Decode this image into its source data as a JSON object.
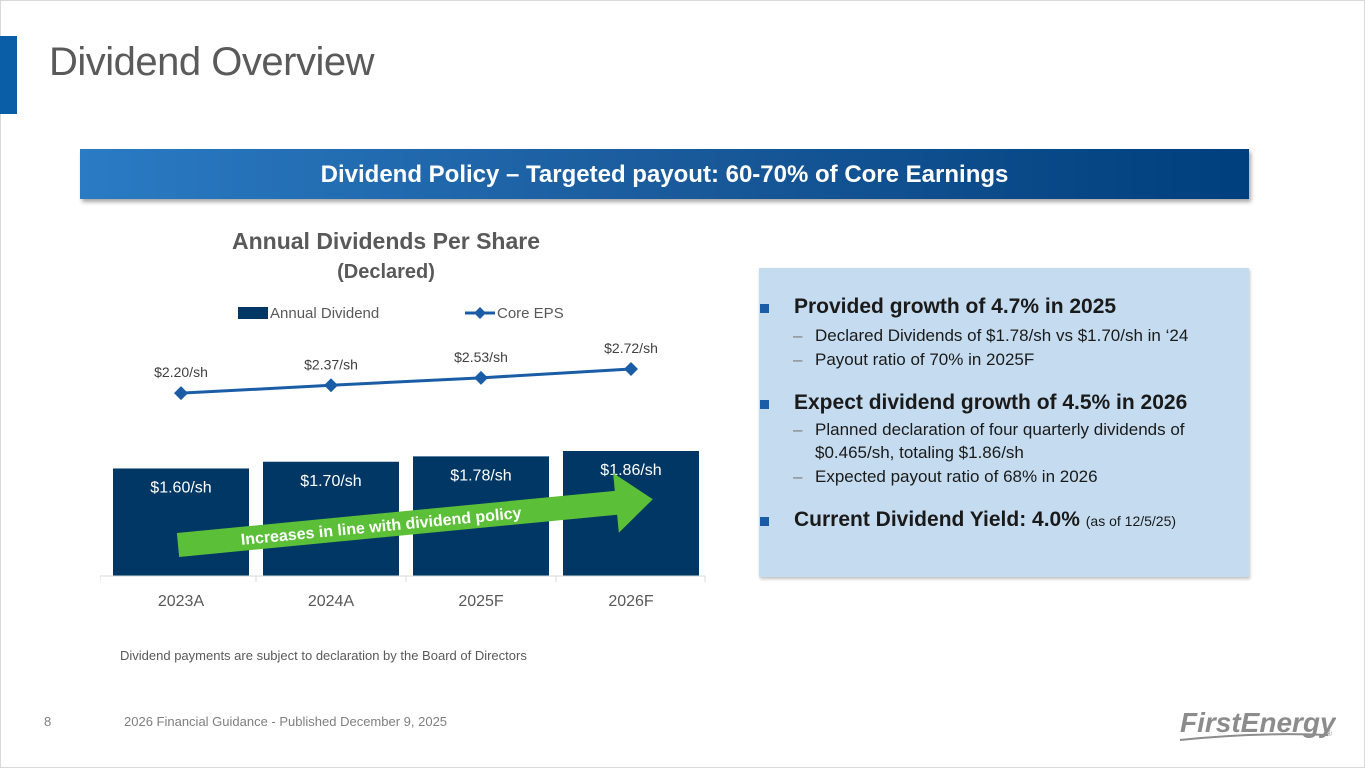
{
  "slide": {
    "title": "Dividend Overview",
    "banner": "Dividend Policy – Targeted payout: 60-70% of Core Earnings",
    "footnote": "Dividend payments are subject to declaration by the Board of Directors",
    "page_number": "8",
    "footer": "2026 Financial Guidance - Published December 9, 2025",
    "logo_text": "FirstEnergy",
    "logo_mark": "®"
  },
  "chart_title": {
    "line1": "Annual Dividends Per Share",
    "line2": "(Declared)"
  },
  "chart_data": {
    "type": "bar",
    "title": "Annual Dividends Per Share (Declared)",
    "categories": [
      "2023A",
      "2024A",
      "2025F",
      "2026F"
    ],
    "series": [
      {
        "name": "Annual Dividend",
        "type": "bar",
        "values": [
          1.6,
          1.7,
          1.78,
          1.86
        ],
        "labels": [
          "$1.60/sh",
          "$1.70/sh",
          "$1.78/sh",
          "$1.86/sh"
        ]
      },
      {
        "name": "Core EPS",
        "type": "line",
        "values": [
          2.2,
          2.37,
          2.53,
          2.72
        ],
        "labels": [
          "$2.20/sh",
          "$2.37/sh",
          "$2.53/sh",
          "$2.72/sh"
        ]
      }
    ],
    "annotation": "Increases in line with dividend policy",
    "legend_position": "top",
    "xlabel": "",
    "ylabel": "",
    "grid": false,
    "colors": {
      "bar": "#003764",
      "line": "#1a5da6",
      "arrow": "#5bbf38"
    }
  },
  "info": {
    "b1": "Provided growth of 4.7% in 2025",
    "b1_s1": "Declared Dividends of $1.78/sh vs $1.70/sh in ‘24",
    "b1_s2": "Payout ratio of 70% in 2025F",
    "b2": "Expect dividend growth of 4.5% in 2026",
    "b2_s1": "Planned declaration of four quarterly dividends of $0.465/sh, totaling $1.86/sh",
    "b2_s2": "Expected payout ratio of 68% in 2026",
    "b3": "Current Dividend Yield: 4.0%",
    "b3_note": "(as of 12/5/25)",
    "dash": "–"
  },
  "colors": {
    "accent": "#0a5ea8",
    "banner_dark": "#003f7d",
    "box_bg": "#c5dcf0"
  }
}
